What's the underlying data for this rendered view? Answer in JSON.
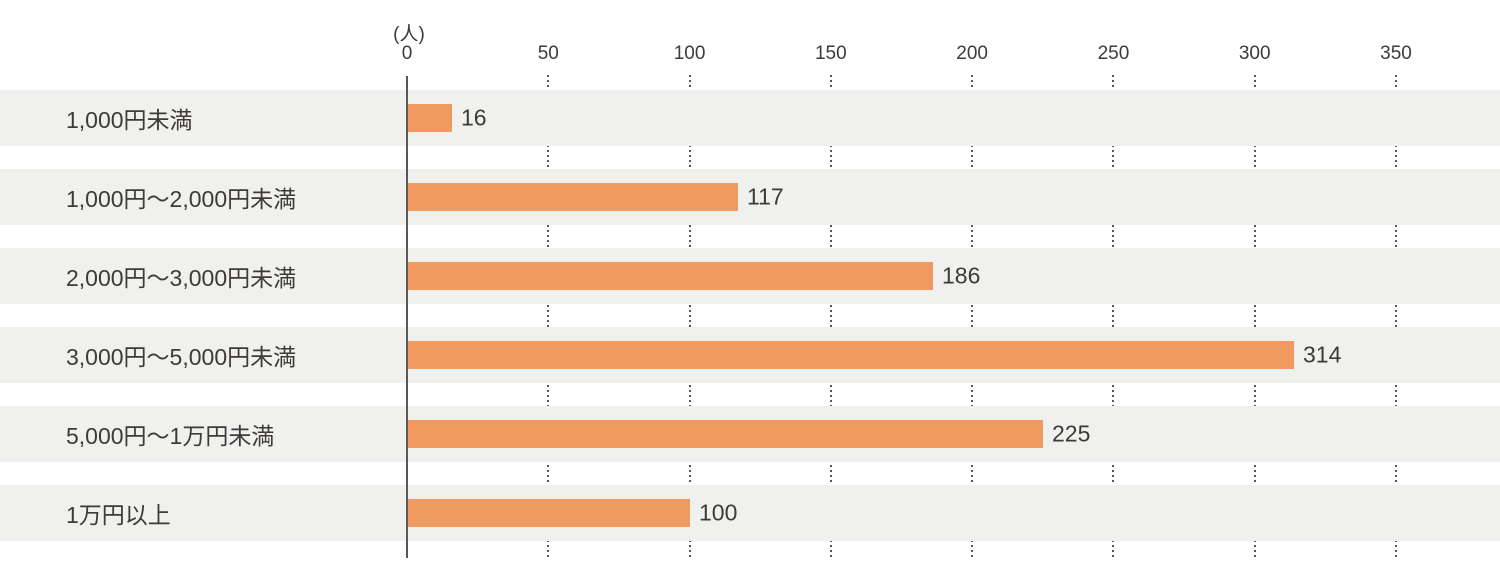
{
  "chart_data": {
    "type": "bar",
    "orientation": "horizontal",
    "unit_label": "(人)",
    "categories": [
      "1,000円未満",
      "1,000円〜2,000円未満",
      "2,000円〜3,000円未満",
      "3,000円〜5,000円未満",
      "5,000円〜1万円未満",
      "1万円以上"
    ],
    "values": [
      16,
      117,
      186,
      314,
      225,
      100
    ],
    "xticks": [
      0,
      50,
      100,
      150,
      200,
      250,
      300,
      350
    ],
    "xlim": [
      0,
      350
    ],
    "grid": "dotted-vertical-in-gaps",
    "legend": "none",
    "colors": {
      "bar": "#F09A62",
      "band": "#F0F0EF",
      "axis": "#595757",
      "text": "#3E3A39"
    }
  }
}
